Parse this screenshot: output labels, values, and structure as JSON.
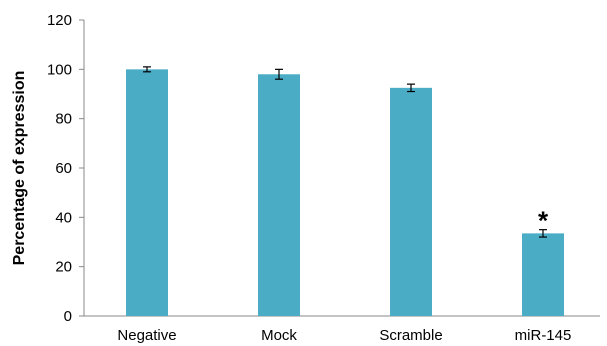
{
  "chart_data": {
    "type": "bar",
    "categories": [
      "Negative",
      "Mock",
      "Scramble",
      "miR-145"
    ],
    "values": [
      100,
      98,
      92.5,
      33.5
    ],
    "errors": [
      1,
      2,
      1.5,
      1.5
    ],
    "ylabel": "Percentage of expression",
    "xlabel": "",
    "ylim": [
      0,
      120
    ],
    "yticks": [
      0,
      20,
      40,
      60,
      80,
      100,
      120
    ],
    "annotations": [
      {
        "category": "miR-145",
        "text": "*"
      }
    ],
    "grid": false,
    "bar_color": "#4bacc6"
  }
}
